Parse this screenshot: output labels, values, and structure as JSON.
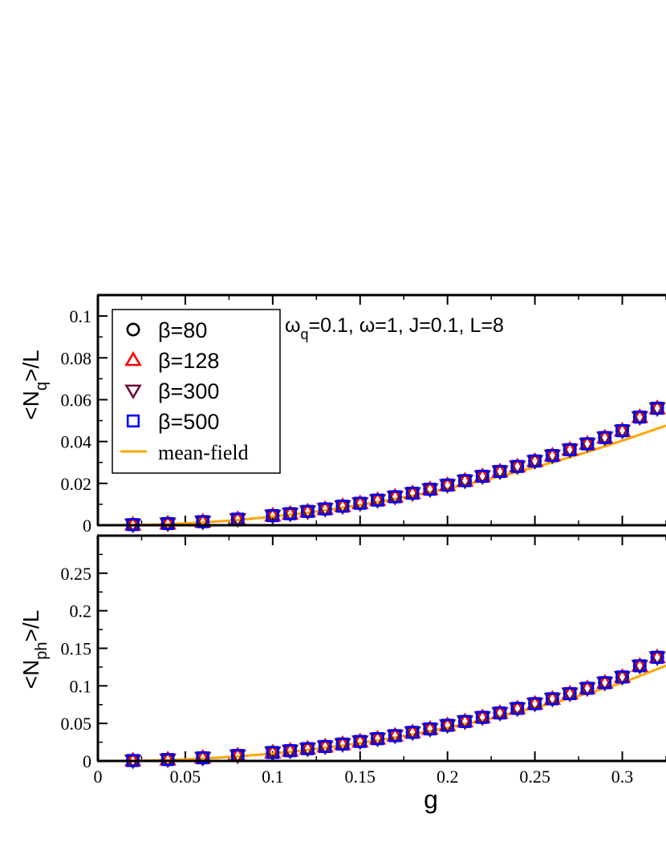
{
  "chart_data": [
    {
      "type": "scatter",
      "panel": "top",
      "annotation": {
        "omega_sym": "ω",
        "q": "q",
        "rest": "=0.1, ω=1, J=0.1, L=8"
      },
      "ylabel": {
        "pre": "<N",
        "sub": "q",
        "post": ">/L"
      },
      "xlim": [
        0,
        0.325
      ],
      "ylim": [
        0,
        0.11
      ],
      "yticks": [
        0,
        0.02,
        0.04,
        0.06,
        0.08,
        0.1
      ],
      "ytick_labels": [
        "0",
        "0.02",
        "0.04",
        "0.06",
        "0.08",
        "0.1"
      ],
      "x": [
        0.02,
        0.04,
        0.06,
        0.08,
        0.1,
        0.11,
        0.12,
        0.13,
        0.14,
        0.15,
        0.16,
        0.17,
        0.18,
        0.19,
        0.2,
        0.21,
        0.22,
        0.23,
        0.24,
        0.25,
        0.26,
        0.27,
        0.28,
        0.29,
        0.3,
        0.31,
        0.32
      ],
      "series": [
        {
          "name": "β=80",
          "marker": "circle",
          "color": "#000000",
          "values": [
            0.0003,
            0.0008,
            0.0017,
            0.0029,
            0.0046,
            0.0055,
            0.0066,
            0.0078,
            0.0091,
            0.0105,
            0.012,
            0.0136,
            0.0153,
            0.0172,
            0.0192,
            0.0213,
            0.0234,
            0.0257,
            0.0281,
            0.0307,
            0.0333,
            0.0361,
            0.0389,
            0.0419,
            0.0452,
            0.0517,
            0.0559
          ]
        },
        {
          "name": "β=128",
          "marker": "triangle-up",
          "color": "#ff0000",
          "values": [
            0.0003,
            0.0008,
            0.0017,
            0.0029,
            0.0046,
            0.0055,
            0.0066,
            0.0078,
            0.0091,
            0.0105,
            0.012,
            0.0136,
            0.0153,
            0.0172,
            0.0192,
            0.0213,
            0.0234,
            0.0257,
            0.0281,
            0.0307,
            0.0333,
            0.0361,
            0.0389,
            0.0419,
            0.0452,
            0.0517,
            0.0559
          ]
        },
        {
          "name": "β=300",
          "marker": "triangle-down",
          "color": "#6b0f3a",
          "values": [
            0.0003,
            0.0008,
            0.0017,
            0.0029,
            0.0046,
            0.0055,
            0.0066,
            0.0078,
            0.0091,
            0.0105,
            0.012,
            0.0136,
            0.0153,
            0.0172,
            0.0192,
            0.0213,
            0.0234,
            0.0257,
            0.0281,
            0.0307,
            0.0333,
            0.0361,
            0.0389,
            0.0419,
            0.0452,
            0.0517,
            0.0559
          ]
        },
        {
          "name": "β=500",
          "marker": "square",
          "color": "#0000ff",
          "values": [
            0.0003,
            0.0008,
            0.0017,
            0.0029,
            0.0046,
            0.0055,
            0.0066,
            0.0078,
            0.0091,
            0.0105,
            0.012,
            0.0136,
            0.0153,
            0.0172,
            0.0192,
            0.0213,
            0.0234,
            0.0257,
            0.0281,
            0.0307,
            0.0333,
            0.0361,
            0.0389,
            0.0419,
            0.0452,
            0.0517,
            0.0559
          ]
        }
      ],
      "mean_field": {
        "name": "mean-field",
        "color": "#ffa500",
        "x": [
          0,
          0.02,
          0.04,
          0.06,
          0.08,
          0.1,
          0.12,
          0.14,
          0.16,
          0.18,
          0.2,
          0.22,
          0.24,
          0.26,
          0.28,
          0.3,
          0.325
        ],
        "y": [
          0,
          0.0001,
          0.0005,
          0.0013,
          0.0025,
          0.0041,
          0.006,
          0.0084,
          0.0111,
          0.0141,
          0.0175,
          0.0213,
          0.0255,
          0.03,
          0.035,
          0.0404,
          0.0476
        ]
      }
    },
    {
      "type": "scatter",
      "panel": "bottom",
      "xlabel": "g",
      "ylabel": {
        "pre": "<N",
        "sub": "ph",
        "post": ">/L"
      },
      "xlim": [
        0,
        0.325
      ],
      "ylim": [
        0,
        0.3
      ],
      "xticks": [
        0,
        0.05,
        0.1,
        0.15,
        0.2,
        0.25,
        0.3
      ],
      "xtick_labels": [
        "0",
        "0.05",
        "0.1",
        "0.15",
        "0.2",
        "0.25",
        "0.3"
      ],
      "yticks": [
        0,
        0.05,
        0.1,
        0.15,
        0.2,
        0.25
      ],
      "ytick_labels": [
        "0",
        "0.05",
        "0.1",
        "0.15",
        "0.2",
        "0.25"
      ],
      "x": [
        0.02,
        0.04,
        0.06,
        0.08,
        0.1,
        0.11,
        0.12,
        0.13,
        0.14,
        0.15,
        0.16,
        0.17,
        0.18,
        0.19,
        0.2,
        0.21,
        0.22,
        0.23,
        0.24,
        0.25,
        0.26,
        0.27,
        0.28,
        0.29,
        0.3,
        0.31,
        0.32
      ],
      "series": [
        {
          "name": "β=80",
          "marker": "circle",
          "color": "#000000",
          "values": [
            0.0006,
            0.0019,
            0.0042,
            0.0073,
            0.0113,
            0.0137,
            0.0164,
            0.0193,
            0.0225,
            0.026,
            0.0297,
            0.0337,
            0.0381,
            0.0427,
            0.0475,
            0.0526,
            0.0581,
            0.0639,
            0.07,
            0.0763,
            0.0828,
            0.0897,
            0.0968,
            0.1042,
            0.1118,
            0.1267,
            0.138
          ]
        },
        {
          "name": "β=128",
          "marker": "triangle-up",
          "color": "#ff0000",
          "values": [
            0.0006,
            0.0019,
            0.0042,
            0.0073,
            0.0113,
            0.0137,
            0.0164,
            0.0193,
            0.0225,
            0.026,
            0.0297,
            0.0337,
            0.0381,
            0.0427,
            0.0475,
            0.0526,
            0.0581,
            0.0639,
            0.07,
            0.0763,
            0.0828,
            0.0897,
            0.0968,
            0.1042,
            0.1118,
            0.1267,
            0.138
          ]
        },
        {
          "name": "β=300",
          "marker": "triangle-down",
          "color": "#6b0f3a",
          "values": [
            0.0006,
            0.0019,
            0.0042,
            0.0073,
            0.0113,
            0.0137,
            0.0164,
            0.0193,
            0.0225,
            0.026,
            0.0297,
            0.0337,
            0.0381,
            0.0427,
            0.0475,
            0.0526,
            0.0581,
            0.0639,
            0.07,
            0.0763,
            0.0828,
            0.0897,
            0.0968,
            0.1042,
            0.1118,
            0.1267,
            0.138
          ]
        },
        {
          "name": "β=500",
          "marker": "square",
          "color": "#0000ff",
          "values": [
            0.0006,
            0.0019,
            0.0042,
            0.0073,
            0.0113,
            0.0137,
            0.0164,
            0.0193,
            0.0225,
            0.026,
            0.0297,
            0.0337,
            0.0381,
            0.0427,
            0.0475,
            0.0526,
            0.0581,
            0.0639,
            0.07,
            0.0763,
            0.0828,
            0.0897,
            0.0968,
            0.1042,
            0.1118,
            0.1267,
            0.138
          ]
        }
      ],
      "mean_field": {
        "name": "mean-field",
        "color": "#ffa500",
        "x": [
          0,
          0.02,
          0.04,
          0.06,
          0.08,
          0.1,
          0.12,
          0.14,
          0.16,
          0.18,
          0.2,
          0.22,
          0.24,
          0.26,
          0.28,
          0.3,
          0.325
        ],
        "y": [
          0,
          0.0003,
          0.0012,
          0.0032,
          0.006,
          0.0098,
          0.0147,
          0.0206,
          0.0274,
          0.0353,
          0.0441,
          0.054,
          0.065,
          0.0769,
          0.0899,
          0.104,
          0.1268
        ]
      }
    }
  ],
  "legend": {
    "placement": "top-left",
    "items": [
      {
        "label": "β=80",
        "marker": "circle",
        "color": "#000000"
      },
      {
        "label": "β=128",
        "marker": "triangle-up",
        "color": "#ff0000"
      },
      {
        "label": "β=300",
        "marker": "triangle-down",
        "color": "#6b0f3a"
      },
      {
        "label": "β=500",
        "marker": "square",
        "color": "#0000ff"
      },
      {
        "label": "mean-field",
        "marker": "line",
        "color": "#ffa500"
      }
    ]
  }
}
